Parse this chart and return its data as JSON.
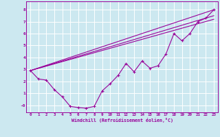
{
  "bg_color": "#cce8f0",
  "grid_color": "#ffffff",
  "line_color": "#990099",
  "marker_color": "#990099",
  "xlabel": "Windchill (Refroidissement éolien,°C)",
  "xlim": [
    -0.5,
    23.5
  ],
  "ylim": [
    -0.6,
    8.7
  ],
  "xticks": [
    0,
    1,
    2,
    3,
    4,
    5,
    6,
    7,
    8,
    9,
    10,
    11,
    12,
    13,
    14,
    15,
    16,
    17,
    18,
    19,
    20,
    21,
    22,
    23
  ],
  "yticks": [
    0,
    1,
    2,
    3,
    4,
    5,
    6,
    7,
    8
  ],
  "ytick_labels": [
    "-0",
    "1",
    "2",
    "3",
    "4",
    "5",
    "6",
    "7",
    "8"
  ],
  "line1_x": [
    0,
    1,
    2,
    3,
    4,
    5,
    6,
    7,
    8,
    9,
    10,
    11,
    12,
    13,
    14,
    15,
    16,
    17,
    18,
    19,
    20,
    21,
    22,
    23
  ],
  "line1_y": [
    2.9,
    2.2,
    2.1,
    1.3,
    0.7,
    -0.1,
    -0.2,
    -0.25,
    -0.1,
    1.2,
    1.8,
    2.5,
    3.5,
    2.8,
    3.7,
    3.1,
    3.3,
    4.3,
    6.0,
    5.4,
    6.0,
    7.0,
    7.3,
    8.0
  ],
  "line2_x": [
    0,
    23
  ],
  "line2_y": [
    2.9,
    8.0
  ],
  "line3_x": [
    0,
    23
  ],
  "line3_y": [
    2.9,
    7.5
  ],
  "line4_x": [
    0,
    23
  ],
  "line4_y": [
    2.9,
    7.2
  ]
}
